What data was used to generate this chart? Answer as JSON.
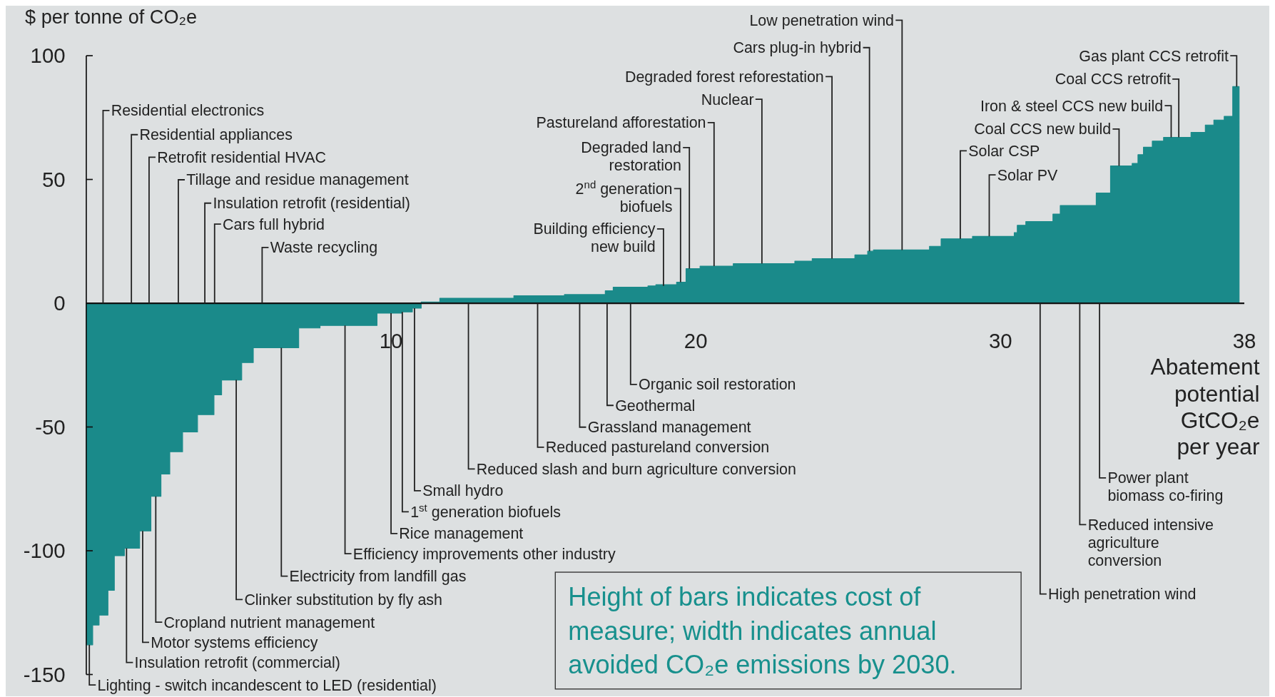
{
  "chart_data": {
    "type": "area",
    "ylabel": "$ per tonne of CO₂e",
    "xlabel": "Abatement potential GtCO₂e per year",
    "x": [
      0,
      0.21,
      0.42,
      0.71,
      0.92,
      1.25,
      1.75,
      2.12,
      2.45,
      2.74,
      3.16,
      3.65,
      4.19,
      4.44,
      5.1,
      5.48,
      6.97,
      7.67,
      9.54,
      10.36,
      10.7,
      10.99,
      11.6,
      14.03,
      15.69,
      17.03,
      17.29,
      18.43,
      18.69,
      19.37,
      19.68,
      20.14,
      21.23,
      23.25,
      23.82,
      25.22,
      25.64,
      25.83,
      27.67,
      28.05,
      29.08,
      30.45,
      30.55,
      30.83,
      31.72,
      31.96,
      33.14,
      33.61,
      34.32,
      34.51,
      34.69,
      34.98,
      35.35,
      36.25,
      36.72,
      37.0,
      37.34,
      37.62,
      37.83
    ],
    "series": [
      {
        "color": "#1a8a8a",
        "values": [
          -138,
          -130,
          -126,
          -116,
          -102,
          -99,
          -92,
          -78,
          -69,
          -60,
          -52,
          -45,
          -37,
          -31,
          -24,
          -18,
          -10,
          -9,
          -4,
          -3.5,
          -2,
          0.5,
          2,
          3,
          3.5,
          5,
          6.5,
          7,
          7.5,
          8.5,
          14,
          15,
          16,
          17,
          18,
          19.5,
          21,
          21.5,
          23,
          26,
          27,
          28.5,
          31.5,
          33,
          36,
          39.5,
          44.5,
          55.5,
          56.5,
          60,
          63,
          65.5,
          67,
          69,
          72,
          74,
          75.5,
          87.5,
          87.5
        ]
      }
    ],
    "xlim": [
      0,
      38
    ],
    "xticks": [
      10,
      20,
      30,
      38
    ],
    "ylim": [
      -150,
      100
    ],
    "yticks": [
      -150,
      -100,
      -50,
      0,
      50,
      100
    ],
    "marker": "none",
    "annotations": [
      {
        "text": "Residential electronics",
        "x": 0.55,
        "y": 0
      },
      {
        "text": "Residential appliances",
        "x": 1.48,
        "y": 0
      },
      {
        "text": "Retrofit residential HVAC",
        "x": 2.06,
        "y": 0
      },
      {
        "text": "Tillage and residue management",
        "x": 3.02,
        "y": 0
      },
      {
        "text": "Insulation retrofit (residential)",
        "x": 3.89,
        "y": 0
      },
      {
        "text": "Cars full hybrid",
        "x": 4.21,
        "y": 0
      },
      {
        "text": "Waste recycling",
        "x": 5.77,
        "y": 0
      },
      {
        "text": "Lighting - switch incandescent to LED (residential)",
        "x": 0.1,
        "y": -138
      },
      {
        "text": "Insulation retrofit (commercial)",
        "x": 1.32,
        "y": -99
      },
      {
        "text": "Motor systems efficiency",
        "x": 1.85,
        "y": -92
      },
      {
        "text": "Cropland nutrient management",
        "x": 2.28,
        "y": -78
      },
      {
        "text": "Clinker substitution by fly ash",
        "x": 4.92,
        "y": -31
      },
      {
        "text": "Electricity from landfill gas",
        "x": 6.4,
        "y": -18
      },
      {
        "text": "Efficiency improvements other industry",
        "x": 8.49,
        "y": -9
      },
      {
        "text": "Rice management",
        "x": 10.0,
        "y": -4
      },
      {
        "text": "1$^{st}$ generation biofuels",
        "x": 10.37,
        "y": -3.5
      },
      {
        "text": "Small hydro",
        "x": 10.77,
        "y": -2
      },
      {
        "text": "Reduced slash and burn agriculture conversion",
        "x": 12.54,
        "y": 0
      },
      {
        "text": "Reduced pastureland conversion",
        "x": 14.81,
        "y": 0
      },
      {
        "text": "Grassland management",
        "x": 16.19,
        "y": 0
      },
      {
        "text": "Geothermal",
        "x": 17.09,
        "y": 0
      },
      {
        "text": "Organic soil restoration",
        "x": 17.86,
        "y": 0
      },
      {
        "text": "Building efficiency new build",
        "x": 18.94,
        "y": 7
      },
      {
        "text": "2$^{nd}$ generation biofuels",
        "x": 19.5,
        "y": 8.5
      },
      {
        "text": "Degraded land restoration",
        "x": 19.79,
        "y": 14
      },
      {
        "text": "Pastureland afforestation",
        "x": 20.6,
        "y": 15
      },
      {
        "text": "Nuclear",
        "x": 22.17,
        "y": 16
      },
      {
        "text": "Degraded forest reforestation",
        "x": 24.47,
        "y": 18
      },
      {
        "text": "Cars plug-in hybrid",
        "x": 25.7,
        "y": 21
      },
      {
        "text": "Low penetration wind",
        "x": 26.77,
        "y": 21.5
      },
      {
        "text": "Solar CSP",
        "x": 28.68,
        "y": 26
      },
      {
        "text": "Solar PV",
        "x": 29.63,
        "y": 27
      },
      {
        "text": "Coal CCS new build",
        "x": 33.89,
        "y": 55.5
      },
      {
        "text": "Iron & steel CCS new build",
        "x": 35.6,
        "y": 67
      },
      {
        "text": "Coal CCS retrofit",
        "x": 35.85,
        "y": 67
      },
      {
        "text": "Gas plant CCS retrofit",
        "x": 37.75,
        "y": 87.5
      },
      {
        "text": "High penetration wind",
        "x": 31.3,
        "y": 0
      },
      {
        "text": "Reduced intensive agriculture conversion",
        "x": 32.6,
        "y": 0
      },
      {
        "text": "Power plant biomass co-firing",
        "x": 33.25,
        "y": 0
      },
      "Height of bars indicates cost of measure;  width indicates annual avoided CO₂e emissions by 2030."
    ]
  }
}
